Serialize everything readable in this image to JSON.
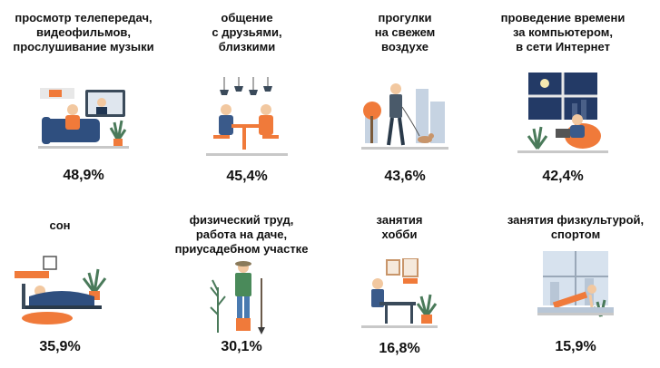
{
  "items": [
    {
      "label": "просмотр телепередач,\nвидеофильмов,\nпрослушивание музыки",
      "value": "48,9%",
      "icon": "watching-tv-illustration"
    },
    {
      "label": "общение\nс друзьями,\nблизкими",
      "value": "45,4%",
      "icon": "friends-dinner-illustration"
    },
    {
      "label": "прогулки\nна свежем\nвоздухе",
      "value": "43,6%",
      "icon": "walking-dog-illustration"
    },
    {
      "label": "проведение времени\nза компьютером,\nв сети Интернет",
      "value": "42,4%",
      "icon": "laptop-night-illustration"
    },
    {
      "label": "сон",
      "value": "35,9%",
      "icon": "sleeping-illustration"
    },
    {
      "label": "физический труд,\nработа на даче,\nприусадебном участке",
      "value": "30,1%",
      "icon": "gardener-illustration"
    },
    {
      "label": "занятия\nхобби",
      "value": "16,8%",
      "icon": "hobby-desk-illustration"
    },
    {
      "label": "занятия физкультурой,\nспортом",
      "value": "15,9%",
      "icon": "exercise-illustration"
    }
  ]
}
